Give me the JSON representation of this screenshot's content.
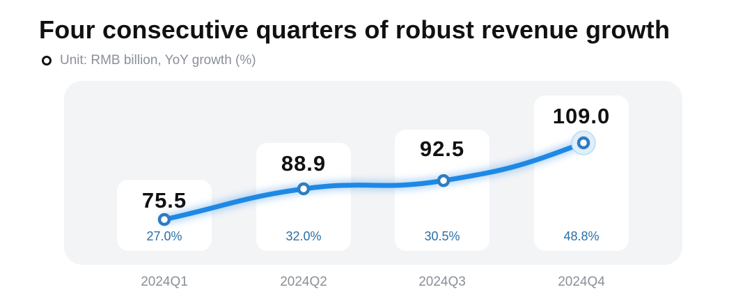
{
  "title": "Four consecutive quarters of robust revenue growth",
  "legend": {
    "text": "Unit: RMB billion, YoY growth (%)"
  },
  "chart_data": {
    "type": "line",
    "title": "Four consecutive quarters of robust revenue growth",
    "subtitle": "Unit: RMB billion, YoY growth (%)",
    "categories": [
      "2024Q1",
      "2024Q2",
      "2024Q3",
      "2024Q4"
    ],
    "values": [
      75.5,
      88.9,
      92.5,
      109.0
    ],
    "value_labels": [
      "75.5",
      "88.9",
      "92.5",
      "109.0"
    ],
    "growth_labels": [
      "27.0%",
      "32.0%",
      "30.5%",
      "48.8%"
    ],
    "growth_values": [
      27.0,
      32.0,
      30.5,
      48.8
    ],
    "grid": false,
    "colors": {
      "line": "#1e88e5",
      "point_ring": "#2f7cc0",
      "growth_text": "#2b6fa6",
      "panel": "#f3f4f6"
    }
  }
}
